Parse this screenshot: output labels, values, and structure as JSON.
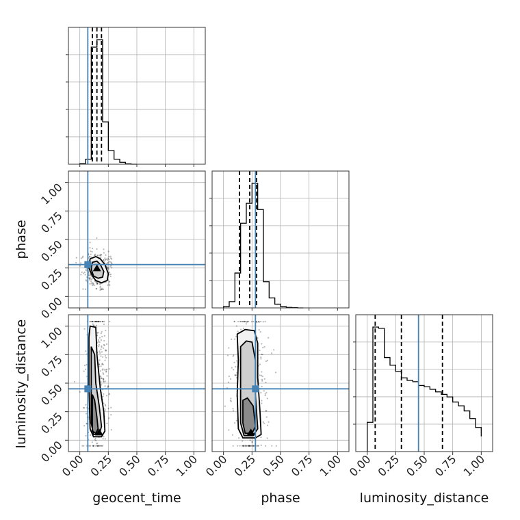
{
  "chart_data": {
    "type": "corner",
    "parameters": [
      "geocent_time",
      "phase",
      "luminosity_distance"
    ],
    "axis_labels": {
      "geocent_time": "geocent_time",
      "phase": "phase",
      "luminosity_distance": "luminosity_distance"
    },
    "ticks": [
      0.0,
      0.25,
      0.5,
      0.75,
      1.0
    ],
    "tick_labels": [
      "0.00",
      "0.25",
      "0.50",
      "0.75",
      "1.00"
    ],
    "range": [
      -0.1,
      1.1
    ],
    "grid": true,
    "truths": {
      "geocent_time": 0.07,
      "phase": 0.28,
      "luminosity_distance": 0.45
    },
    "quantiles": {
      "geocent_time": [
        0.11,
        0.15,
        0.19
      ],
      "phase": [
        0.14,
        0.23,
        0.29
      ],
      "luminosity_distance": [
        0.07,
        0.3,
        0.66
      ]
    },
    "histograms": {
      "geocent_time": {
        "edges": [
          0.0,
          0.05,
          0.1,
          0.15,
          0.2,
          0.25,
          0.3,
          0.35,
          0.4,
          0.45,
          0.5
        ],
        "counts": [
          0.005,
          0.04,
          0.94,
          1.0,
          0.34,
          0.11,
          0.04,
          0.015,
          0.003,
          0.0
        ]
      },
      "phase": {
        "edges": [
          0.0,
          0.05,
          0.1,
          0.15,
          0.2,
          0.25,
          0.3,
          0.35,
          0.4,
          0.45,
          0.5,
          0.55,
          0.6,
          0.65,
          0.7
        ],
        "counts": [
          0.01,
          0.05,
          0.28,
          0.68,
          0.84,
          1.0,
          0.79,
          0.21,
          0.08,
          0.03,
          0.01,
          0.004,
          0.002,
          0.0
        ]
      },
      "luminosity_distance": {
        "edges": [
          0.0,
          0.05,
          0.1,
          0.15,
          0.2,
          0.25,
          0.3,
          0.35,
          0.4,
          0.45,
          0.5,
          0.55,
          0.6,
          0.65,
          0.7,
          0.75,
          0.8,
          0.85,
          0.9,
          0.95,
          1.0
        ],
        "counts": [
          0.23,
          0.98,
          0.97,
          0.74,
          0.68,
          0.63,
          0.58,
          0.56,
          0.55,
          0.52,
          0.51,
          0.49,
          0.47,
          0.45,
          0.43,
          0.39,
          0.36,
          0.32,
          0.26,
          0.19,
          0.12
        ]
      }
    },
    "joint": [
      {
        "x": "geocent_time",
        "y": "phase",
        "peak": [
          0.15,
          0.24
        ],
        "contours": [
          [
            [
              0.09,
              0.33
            ],
            [
              0.14,
              0.35
            ],
            [
              0.18,
              0.33
            ],
            [
              0.22,
              0.28
            ],
            [
              0.25,
              0.2
            ],
            [
              0.24,
              0.14
            ],
            [
              0.19,
              0.12
            ],
            [
              0.14,
              0.14
            ],
            [
              0.11,
              0.18
            ],
            [
              0.08,
              0.25
            ]
          ],
          [
            [
              0.11,
              0.3
            ],
            [
              0.15,
              0.31
            ],
            [
              0.18,
              0.28
            ],
            [
              0.21,
              0.22
            ],
            [
              0.2,
              0.17
            ],
            [
              0.16,
              0.16
            ],
            [
              0.12,
              0.18
            ],
            [
              0.1,
              0.24
            ]
          ]
        ]
      },
      {
        "x": "geocent_time",
        "y": "luminosity_distance",
        "peak": [
          0.17,
          0.06
        ],
        "contours": [
          [
            [
              0.09,
              1.0
            ],
            [
              0.14,
              0.99
            ],
            [
              0.15,
              0.75
            ],
            [
              0.18,
              0.45
            ],
            [
              0.21,
              0.25
            ],
            [
              0.22,
              0.08
            ],
            [
              0.19,
              0.03
            ],
            [
              0.12,
              0.03
            ],
            [
              0.09,
              0.1
            ],
            [
              0.08,
              0.5
            ],
            [
              0.08,
              0.9
            ]
          ],
          [
            [
              0.1,
              0.82
            ],
            [
              0.13,
              0.75
            ],
            [
              0.14,
              0.5
            ],
            [
              0.17,
              0.3
            ],
            [
              0.19,
              0.12
            ],
            [
              0.17,
              0.05
            ],
            [
              0.12,
              0.05
            ],
            [
              0.1,
              0.15
            ],
            [
              0.1,
              0.5
            ]
          ],
          [
            [
              0.11,
              0.4
            ],
            [
              0.13,
              0.35
            ],
            [
              0.15,
              0.2
            ],
            [
              0.16,
              0.1
            ],
            [
              0.14,
              0.06
            ],
            [
              0.11,
              0.08
            ],
            [
              0.11,
              0.25
            ]
          ]
        ]
      },
      {
        "x": "phase",
        "y": "luminosity_distance",
        "peak": [
          0.24,
          0.06
        ],
        "contours": [
          [
            [
              0.12,
              0.93
            ],
            [
              0.19,
              0.97
            ],
            [
              0.27,
              0.96
            ],
            [
              0.3,
              0.85
            ],
            [
              0.3,
              0.55
            ],
            [
              0.32,
              0.25
            ],
            [
              0.33,
              0.05
            ],
            [
              0.28,
              0.02
            ],
            [
              0.17,
              0.02
            ],
            [
              0.13,
              0.1
            ],
            [
              0.12,
              0.4
            ],
            [
              0.13,
              0.7
            ]
          ],
          [
            [
              0.15,
              0.82
            ],
            [
              0.2,
              0.87
            ],
            [
              0.25,
              0.86
            ],
            [
              0.28,
              0.7
            ],
            [
              0.28,
              0.4
            ],
            [
              0.3,
              0.1
            ],
            [
              0.26,
              0.04
            ],
            [
              0.18,
              0.04
            ],
            [
              0.15,
              0.15
            ],
            [
              0.15,
              0.5
            ]
          ],
          [
            [
              0.17,
              0.35
            ],
            [
              0.21,
              0.37
            ],
            [
              0.26,
              0.3
            ],
            [
              0.28,
              0.12
            ],
            [
              0.25,
              0.06
            ],
            [
              0.19,
              0.06
            ],
            [
              0.17,
              0.15
            ]
          ]
        ]
      }
    ]
  }
}
